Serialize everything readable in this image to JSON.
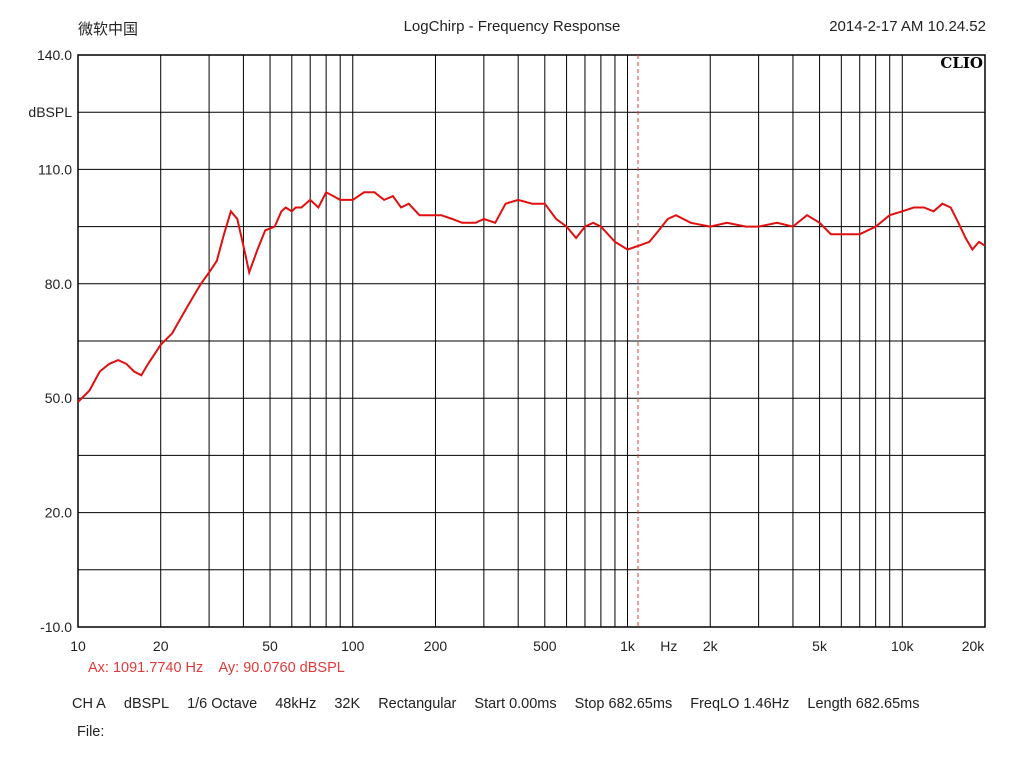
{
  "header": {
    "left": "微软中国",
    "title": "LogChirp - Frequency Response",
    "datetime": "2014-2-17 AM 10.24.52"
  },
  "brand": "CLIO",
  "cursor": {
    "x_label": "Ax: 1091.7740 Hz",
    "y_label": "Ay: 90.0760 dBSPL",
    "x_value": 1091.774,
    "y_value": 90.076,
    "color": "#e03a3a"
  },
  "info": {
    "channel": "CH A",
    "unit": "dBSPL",
    "smoothing": "1/6 Octave",
    "rate": "48kHz",
    "size": "32K",
    "window": "Rectangular",
    "start": "Start 0.00ms",
    "stop": "Stop 682.65ms",
    "freqlo": "FreqLO 1.46Hz",
    "length": "Length 682.65ms"
  },
  "file_label": "File:",
  "chart_data": {
    "type": "line",
    "title": "LogChirp - Frequency Response",
    "xlabel": "Hz",
    "ylabel": "dBSPL",
    "xscale": "log",
    "xlim": [
      10,
      20000
    ],
    "ylim": [
      -10,
      140
    ],
    "grid": true,
    "x_ticks": [
      10,
      20,
      50,
      100,
      200,
      500,
      1000,
      2000,
      5000,
      10000,
      20000
    ],
    "x_tick_labels": [
      "10",
      "20",
      "50",
      "100",
      "200",
      "500",
      "1k",
      "2k",
      "5k",
      "10k",
      "20k"
    ],
    "y_ticks": [
      140,
      110,
      80,
      50,
      20,
      -10
    ],
    "y_tick_labels": [
      "140.0",
      "110.0",
      "80.0",
      "50.0",
      "20.0",
      "-10.0"
    ],
    "series": [
      {
        "color": "#e01010",
        "x": [
          10,
          11,
          12,
          13,
          14,
          15,
          16,
          17,
          18,
          20,
          22,
          25,
          28,
          30,
          32,
          34,
          36,
          38,
          40,
          42,
          45,
          48,
          52,
          55,
          57,
          60,
          62,
          65,
          70,
          75,
          80,
          85,
          90,
          100,
          110,
          120,
          130,
          140,
          150,
          160,
          175,
          190,
          210,
          230,
          250,
          280,
          300,
          330,
          360,
          400,
          450,
          500,
          550,
          600,
          650,
          700,
          750,
          800,
          900,
          1000,
          1100,
          1200,
          1300,
          1400,
          1500,
          1700,
          2000,
          2300,
          2700,
          3000,
          3500,
          4000,
          4500,
          5000,
          5500,
          6000,
          7000,
          8000,
          9000,
          10000,
          11000,
          12000,
          13000,
          14000,
          15000,
          16000,
          17000,
          18000,
          19000,
          20000
        ],
        "y": [
          49,
          52,
          57,
          59,
          60,
          59,
          57,
          56,
          59,
          64,
          67,
          74,
          80,
          83,
          86,
          93,
          99,
          97,
          90,
          83,
          89,
          94,
          95,
          99,
          100,
          99,
          100,
          100,
          102,
          100,
          104,
          103,
          102,
          102,
          104,
          104,
          102,
          103,
          100,
          101,
          98,
          98,
          98,
          97,
          96,
          96,
          97,
          96,
          101,
          102,
          101,
          101,
          97,
          95,
          92,
          95,
          96,
          95,
          91,
          89,
          90,
          91,
          94,
          97,
          98,
          96,
          95,
          96,
          95,
          95,
          96,
          95,
          98,
          96,
          93,
          93,
          93,
          95,
          98,
          99,
          100,
          100,
          99,
          101,
          100,
          96,
          92,
          89,
          91,
          90
        ]
      }
    ]
  }
}
